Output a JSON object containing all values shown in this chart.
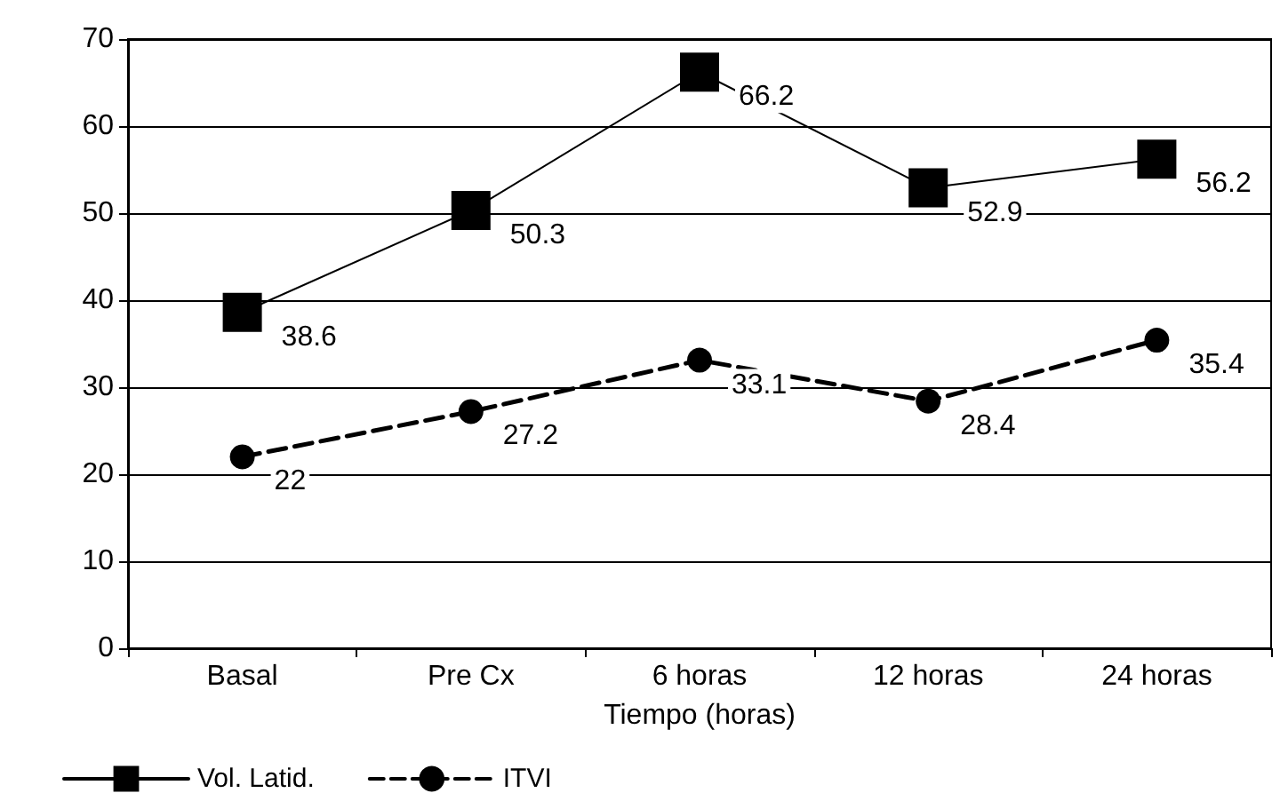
{
  "chart_data": {
    "type": "line",
    "xlabel": "Tiempo (horas)",
    "categories": [
      "Basal",
      "Pre Cx",
      "6 horas",
      "12 horas",
      "24 horas"
    ],
    "series": [
      {
        "name": "Vol. Latid.",
        "color": "#000000",
        "values": [
          38.6,
          50.3,
          66.2,
          52.9,
          56.2
        ],
        "marker": "square",
        "line_style": "solid"
      },
      {
        "name": "ITVI",
        "color": "#000000",
        "values": [
          22,
          27.2,
          33.1,
          28.4,
          35.4
        ],
        "marker": "circle",
        "line_style": "dashed"
      }
    ],
    "ylim": [
      0,
      70
    ],
    "yticks": [
      0,
      10,
      20,
      30,
      40,
      50,
      60,
      70
    ],
    "grid": "y",
    "legend": "bottom left",
    "data_labels": true
  }
}
